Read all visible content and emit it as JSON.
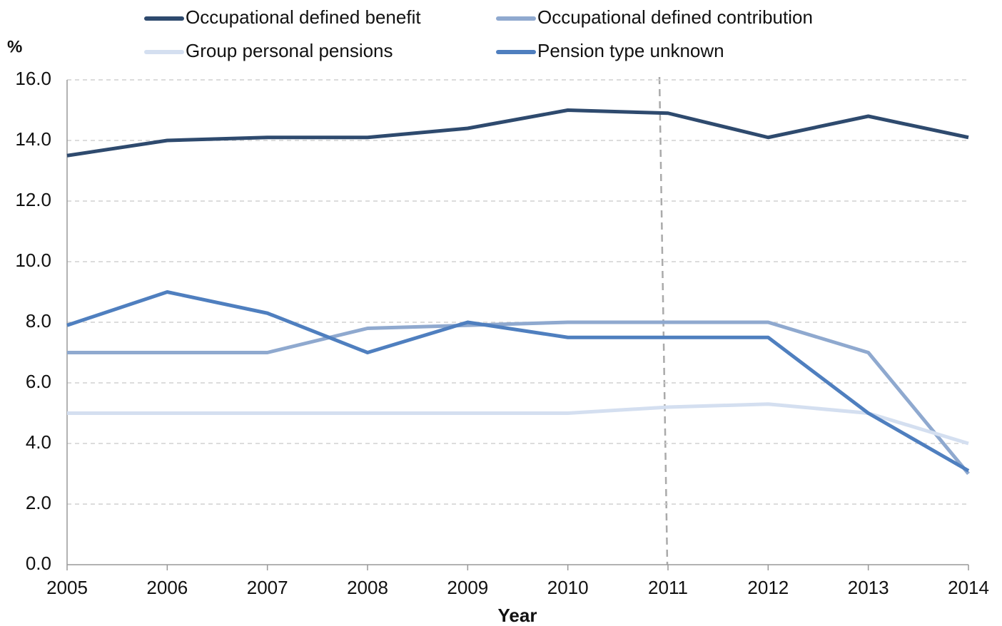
{
  "chart_data": {
    "type": "line",
    "y_label": "%",
    "x_label": "Year",
    "categories": [
      "2005",
      "2006",
      "2007",
      "2008",
      "2009",
      "2010",
      "2011",
      "2012",
      "2013",
      "2014"
    ],
    "series": [
      {
        "name": "Occupational defined benefit",
        "color": "#2e4a6e",
        "values": [
          13.5,
          14.0,
          14.1,
          14.1,
          14.4,
          15.0,
          14.9,
          14.1,
          14.8,
          14.1
        ]
      },
      {
        "name": "Occupational defined contribution",
        "color": "#8fa9cf",
        "values": [
          7.0,
          7.0,
          7.0,
          7.8,
          7.9,
          8.0,
          8.0,
          8.0,
          7.0,
          3.0
        ]
      },
      {
        "name": "Group personal pensions",
        "color": "#d4dff0",
        "values": [
          5.0,
          5.0,
          5.0,
          5.0,
          5.0,
          5.0,
          5.2,
          5.3,
          5.0,
          4.0
        ]
      },
      {
        "name": "Pension type unknown",
        "color": "#4f7fbf",
        "values": [
          7.9,
          9.0,
          8.3,
          7.0,
          8.0,
          7.5,
          7.5,
          7.5,
          5.0,
          3.1
        ]
      }
    ],
    "ylim": [
      0,
      16
    ],
    "yticks": [
      {
        "value": 0,
        "label": "0.0"
      },
      {
        "value": 2,
        "label": "2.0"
      },
      {
        "value": 4,
        "label": "4.0"
      },
      {
        "value": 6,
        "label": "6.0"
      },
      {
        "value": 8,
        "label": "8.0"
      },
      {
        "value": 10,
        "label": "10.0"
      },
      {
        "value": 12,
        "label": "12.0"
      },
      {
        "value": 14,
        "label": "14.0"
      },
      {
        "value": 16,
        "label": "16.0"
      }
    ],
    "grid": true
  }
}
